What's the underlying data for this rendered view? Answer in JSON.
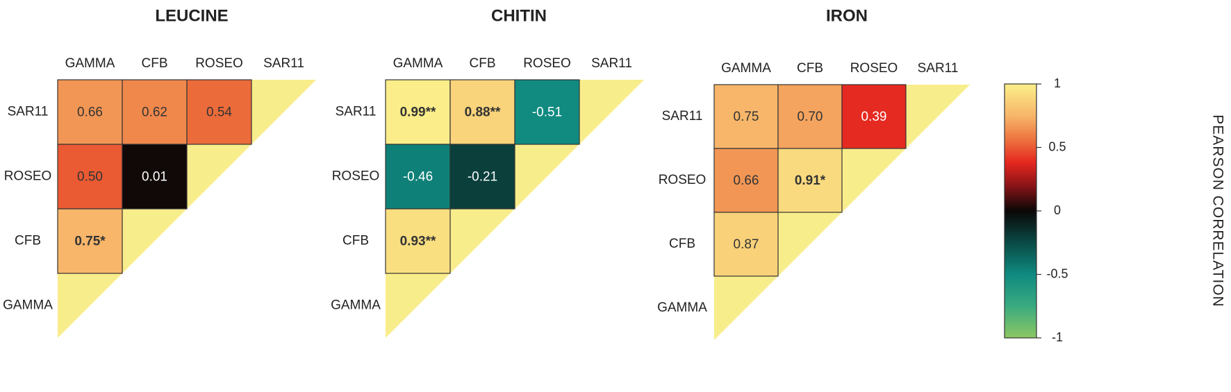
{
  "chart_data": [
    {
      "type": "heatmap",
      "title": "LEUCINE",
      "columns": [
        "GAMMA",
        "CFB",
        "ROSEO",
        "SAR11"
      ],
      "rows": [
        "SAR11",
        "ROSEO",
        "CFB",
        "GAMMA"
      ],
      "cells": [
        {
          "row": "SAR11",
          "col": "GAMMA",
          "value": 0.66,
          "label": "0.66"
        },
        {
          "row": "SAR11",
          "col": "CFB",
          "value": 0.62,
          "label": "0.62"
        },
        {
          "row": "SAR11",
          "col": "ROSEO",
          "value": 0.54,
          "label": "0.54"
        },
        {
          "row": "ROSEO",
          "col": "GAMMA",
          "value": 0.5,
          "label": "0.50"
        },
        {
          "row": "ROSEO",
          "col": "CFB",
          "value": 0.01,
          "label": "0.01"
        },
        {
          "row": "CFB",
          "col": "GAMMA",
          "value": 0.75,
          "label": "0.75*"
        }
      ]
    },
    {
      "type": "heatmap",
      "title": "CHITIN",
      "columns": [
        "GAMMA",
        "CFB",
        "ROSEO",
        "SAR11"
      ],
      "rows": [
        "SAR11",
        "ROSEO",
        "CFB",
        "GAMMA"
      ],
      "cells": [
        {
          "row": "SAR11",
          "col": "GAMMA",
          "value": 0.99,
          "label": "0.99**"
        },
        {
          "row": "SAR11",
          "col": "CFB",
          "value": 0.88,
          "label": "0.88**"
        },
        {
          "row": "SAR11",
          "col": "ROSEO",
          "value": -0.51,
          "label": "-0.51"
        },
        {
          "row": "ROSEO",
          "col": "GAMMA",
          "value": -0.46,
          "label": "-0.46"
        },
        {
          "row": "ROSEO",
          "col": "CFB",
          "value": -0.21,
          "label": "-0.21"
        },
        {
          "row": "CFB",
          "col": "GAMMA",
          "value": 0.93,
          "label": "0.93**"
        }
      ]
    },
    {
      "type": "heatmap",
      "title": "IRON",
      "columns": [
        "GAMMA",
        "CFB",
        "ROSEO",
        "SAR11"
      ],
      "rows": [
        "SAR11",
        "ROSEO",
        "CFB",
        "GAMMA"
      ],
      "cells": [
        {
          "row": "SAR11",
          "col": "GAMMA",
          "value": 0.75,
          "label": "0.75"
        },
        {
          "row": "SAR11",
          "col": "CFB",
          "value": 0.7,
          "label": "0.70"
        },
        {
          "row": "SAR11",
          "col": "ROSEO",
          "value": 0.39,
          "label": "0.39"
        },
        {
          "row": "ROSEO",
          "col": "GAMMA",
          "value": 0.66,
          "label": "0.66"
        },
        {
          "row": "ROSEO",
          "col": "CFB",
          "value": 0.91,
          "label": "0.91*"
        },
        {
          "row": "CFB",
          "col": "GAMMA",
          "value": 0.87,
          "label": "0.87"
        }
      ]
    }
  ],
  "colorbar": {
    "title": "PEARSON CORRELATION",
    "range": [
      -1,
      1
    ],
    "ticks": [
      {
        "value": 1,
        "label": "1"
      },
      {
        "value": 0.5,
        "label": "0.5"
      },
      {
        "value": 0,
        "label": "0"
      },
      {
        "value": -0.5,
        "label": "-0.5"
      },
      {
        "value": -1,
        "label": "-1"
      }
    ],
    "stops": [
      {
        "value": -1,
        "color": "#8cc763"
      },
      {
        "value": -0.75,
        "color": "#3aaa80"
      },
      {
        "value": -0.5,
        "color": "#0f8a80"
      },
      {
        "value": -0.25,
        "color": "#0a4a45"
      },
      {
        "value": 0,
        "color": "#0b0707"
      },
      {
        "value": 0.2,
        "color": "#8a1518"
      },
      {
        "value": 0.38,
        "color": "#e5261f"
      },
      {
        "value": 0.55,
        "color": "#ec6f3c"
      },
      {
        "value": 0.75,
        "color": "#f7b66a"
      },
      {
        "value": 1,
        "color": "#fbef8a"
      }
    ],
    "diagonal_color": "#f8ed8b"
  }
}
